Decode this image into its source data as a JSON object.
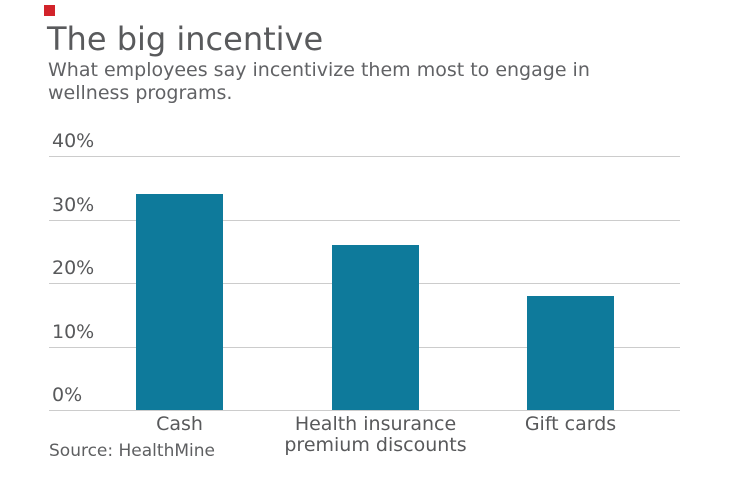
{
  "brand": {
    "mark_color": "#d2232a"
  },
  "chart_data": {
    "type": "bar",
    "title": "The big incentive",
    "subtitle": "What employees say incentivize them most to engage in wellness programs.",
    "categories": [
      "Cash",
      "Health insurance premium discounts",
      "Gift cards"
    ],
    "values": [
      34,
      26,
      18
    ],
    "unit": "%",
    "xlabel": "",
    "ylabel": "",
    "ylim": [
      0,
      40
    ],
    "yticks": [
      {
        "value": 40,
        "label": "40%"
      },
      {
        "value": 30,
        "label": "30%"
      },
      {
        "value": 20,
        "label": "20%"
      },
      {
        "value": 10,
        "label": "10%"
      },
      {
        "value": 0,
        "label": "0%"
      }
    ],
    "grid": true,
    "legend": false,
    "bar_color": "#0e7a9b",
    "gridline_color": "#cccccc",
    "text_color": "#58595b"
  },
  "footer": {
    "source_label": "Source: HealthMine"
  }
}
